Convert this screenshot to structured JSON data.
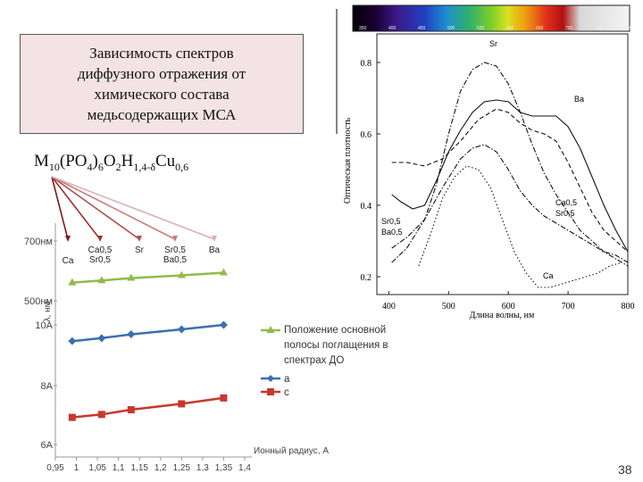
{
  "title_box": {
    "lines": [
      "Зависимость спектров",
      "диффузного отражения от",
      "химического состава",
      "медьсодержащих МСА"
    ]
  },
  "formula": {
    "parts": [
      "M",
      "10",
      "(PO",
      "4",
      ")",
      "6",
      "O",
      "2",
      "H",
      "1,4-δ",
      "Cu",
      "0,6"
    ]
  },
  "page_number": "38",
  "spectrum_bar_ticks": [
    "350",
    "400",
    "450",
    "500",
    "550",
    "600",
    "650",
    "700",
    "750",
    "800"
  ],
  "chart_data": [
    {
      "type": "line",
      "xlabel": "Длина волны, нм",
      "ylabel": "Оптическая плотность",
      "xlim": [
        380,
        800
      ],
      "ylim": [
        0.15,
        0.88
      ],
      "x_ticks": [
        400,
        500,
        600,
        700,
        800
      ],
      "y_ticks": [
        0.2,
        0.4,
        0.6,
        0.8
      ],
      "y_tick_labels": [
        "0.2",
        "0.4",
        "0.6",
        "0.8"
      ],
      "series": [
        {
          "name": "Sr",
          "style": "dashdot",
          "x": [
            405,
            430,
            460,
            480,
            500,
            520,
            540,
            560,
            580,
            600,
            620,
            640,
            660,
            680,
            700,
            720,
            740,
            760,
            780,
            800
          ],
          "y": [
            0.24,
            0.28,
            0.36,
            0.46,
            0.6,
            0.72,
            0.78,
            0.8,
            0.79,
            0.74,
            0.66,
            0.57,
            0.49,
            0.43,
            0.38,
            0.33,
            0.3,
            0.27,
            0.25,
            0.23
          ]
        },
        {
          "name": "Ba",
          "style": "solid",
          "x": [
            405,
            420,
            440,
            460,
            480,
            500,
            520,
            540,
            560,
            580,
            600,
            620,
            640,
            660,
            680,
            700,
            720,
            740,
            760,
            780,
            800
          ],
          "y": [
            0.43,
            0.41,
            0.39,
            0.4,
            0.47,
            0.55,
            0.61,
            0.66,
            0.69,
            0.695,
            0.69,
            0.66,
            0.65,
            0.65,
            0.65,
            0.62,
            0.56,
            0.48,
            0.4,
            0.33,
            0.27
          ]
        },
        {
          "name": "Ca0,5 Sr0,5",
          "style": "dashed",
          "x": [
            405,
            430,
            460,
            490,
            520,
            550,
            580,
            600,
            620,
            640,
            660,
            680,
            700,
            720,
            740,
            760,
            780,
            800
          ],
          "y": [
            0.52,
            0.52,
            0.51,
            0.53,
            0.58,
            0.64,
            0.67,
            0.66,
            0.63,
            0.61,
            0.6,
            0.58,
            0.52,
            0.45,
            0.38,
            0.33,
            0.3,
            0.27
          ]
        },
        {
          "name": "Sr0,5 Ba0,5",
          "style": "dashdot",
          "x": [
            405,
            430,
            460,
            490,
            520,
            540,
            560,
            580,
            600,
            620,
            640,
            660,
            680,
            700,
            720,
            740,
            760,
            780,
            800
          ],
          "y": [
            0.28,
            0.31,
            0.36,
            0.45,
            0.53,
            0.56,
            0.57,
            0.55,
            0.5,
            0.44,
            0.4,
            0.37,
            0.35,
            0.33,
            0.31,
            0.29,
            0.27,
            0.26,
            0.24
          ]
        },
        {
          "name": "Ca",
          "style": "dotted",
          "x": [
            450,
            470,
            490,
            510,
            530,
            550,
            570,
            590,
            610,
            630,
            650,
            670,
            690,
            710,
            730,
            750,
            770,
            790
          ],
          "y": [
            0.23,
            0.32,
            0.42,
            0.48,
            0.51,
            0.5,
            0.45,
            0.36,
            0.27,
            0.21,
            0.17,
            0.17,
            0.18,
            0.19,
            0.2,
            0.21,
            0.23,
            0.24
          ]
        }
      ]
    },
    {
      "type": "line",
      "xlabel": "Ионный радиус, А",
      "ylabel": "λ, нм",
      "xlim": [
        0.95,
        1.4
      ],
      "x_ticks": [
        0.95,
        1.0,
        1.05,
        1.1,
        1.15,
        1.2,
        1.25,
        1.3,
        1.35,
        1.4
      ],
      "x_tick_labels": [
        "0,95",
        "1",
        "1,05",
        "1,1",
        "1,15",
        "1,2",
        "1,25",
        "1,3",
        "1,35",
        "1,4"
      ],
      "y_tick_labels": [
        "700нм",
        "500нм",
        "10А",
        "8А",
        "6А"
      ],
      "top_labels": [
        "Ca",
        "Ca0,5 Sr0,5",
        "Sr",
        "Sr0,5 Ba0,5",
        "Ba"
      ],
      "legend": [
        "Положение основной полосы поглащения в спектрах ДО",
        "a",
        "c"
      ],
      "series": [
        {
          "name": "Положение основной полосы поглащения в спектрах ДО",
          "color": "#8fbc4a",
          "x": [
            0.99,
            1.06,
            1.13,
            1.25,
            1.35
          ],
          "y": [
            549,
            556,
            564,
            573,
            582
          ]
        },
        {
          "name": "a",
          "color": "#3c6fb0",
          "x": [
            0.99,
            1.06,
            1.13,
            1.25,
            1.35
          ],
          "y": [
            9.45,
            9.55,
            9.68,
            9.85,
            10.0
          ]
        },
        {
          "name": "c",
          "color": "#c8372d",
          "x": [
            0.99,
            1.06,
            1.13,
            1.25,
            1.35
          ],
          "y": [
            6.86,
            6.96,
            7.12,
            7.32,
            7.52
          ]
        }
      ]
    }
  ]
}
